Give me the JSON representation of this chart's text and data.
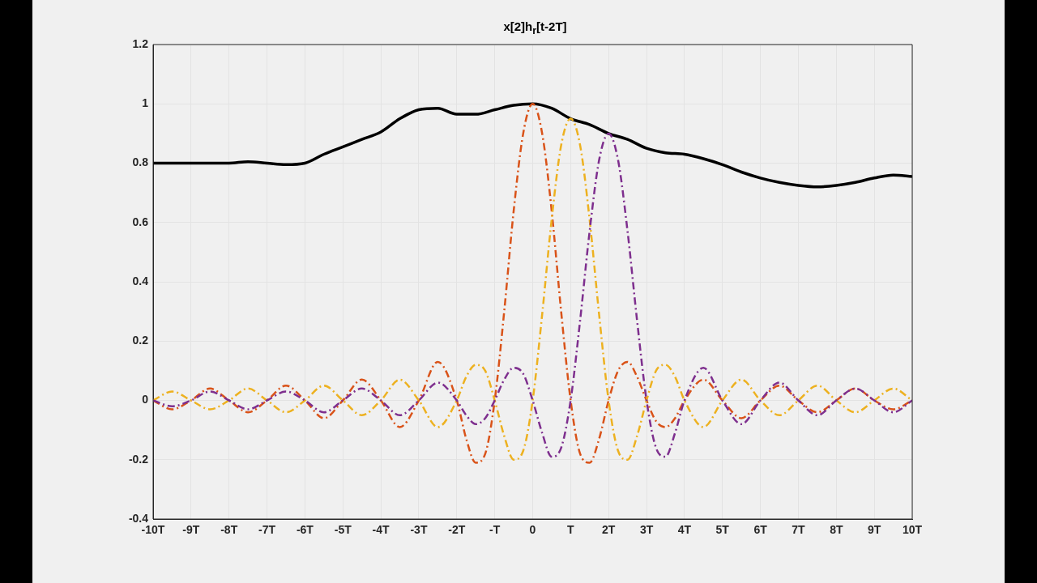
{
  "chart_data": {
    "type": "line",
    "title": "x[2]h$_{r}$[t-2T]",
    "x": [
      -10,
      -9.5,
      -9,
      -8.5,
      -8,
      -7.5,
      -7,
      -6.5,
      -6,
      -5.5,
      -5,
      -4.5,
      -4,
      -3.5,
      -3,
      -2.5,
      -2,
      -1.75,
      -1.5,
      -1.25,
      -1,
      -0.75,
      -0.5,
      -0.25,
      0,
      0.25,
      0.5,
      0.75,
      1,
      1.25,
      1.5,
      1.75,
      2,
      2.25,
      2.5,
      2.75,
      3,
      3.25,
      3.5,
      3.75,
      4,
      4.5,
      5,
      5.5,
      6,
      6.5,
      7,
      7.5,
      8,
      8.5,
      9,
      9.5,
      10
    ],
    "series": [
      {
        "color": "#000000",
        "line_style": "solid",
        "x": [
          -10,
          -9.5,
          -9,
          -8.5,
          -8,
          -7.5,
          -7,
          -6.5,
          -6,
          -5.5,
          -5,
          -4.5,
          -4,
          -3.5,
          -3,
          -2.5,
          -2,
          -1.5,
          -1,
          -0.5,
          0,
          0.5,
          1,
          1.5,
          2,
          2.5,
          3,
          3.5,
          4,
          4.5,
          5,
          5.5,
          6,
          6.5,
          7,
          7.5,
          8,
          8.5,
          9,
          9.5,
          10
        ],
        "values": [
          0.8,
          0.8,
          0.8,
          0.8,
          0.8,
          0.805,
          0.8,
          0.795,
          0.8,
          0.83,
          0.855,
          0.88,
          0.905,
          0.95,
          0.98,
          0.985,
          0.965,
          0.965,
          0.98,
          0.995,
          1.0,
          0.985,
          0.95,
          0.93,
          0.9,
          0.88,
          0.85,
          0.835,
          0.83,
          0.815,
          0.795,
          0.77,
          0.75,
          0.735,
          0.725,
          0.72,
          0.725,
          0.735,
          0.75,
          0.76,
          0.755
        ]
      },
      {
        "color": "#d95319",
        "line_style": "dashed",
        "values": [
          0,
          -0.03,
          0,
          0.04,
          0,
          -0.04,
          0,
          0.05,
          0,
          -0.06,
          0,
          0.07,
          0,
          -0.09,
          0,
          0.13,
          0,
          -0.13,
          -0.21,
          -0.18,
          0,
          0.3,
          0.64,
          0.9,
          1,
          0.9,
          0.64,
          0.3,
          0,
          -0.18,
          -0.21,
          -0.13,
          0,
          0.1,
          0.13,
          0.08,
          0,
          -0.07,
          -0.09,
          -0.06,
          0,
          0.07,
          0,
          -0.06,
          0,
          0.05,
          0,
          -0.04,
          0,
          0.04,
          0,
          -0.03,
          0
        ]
      },
      {
        "color": "#edb120",
        "line_style": "dashed",
        "values": [
          0,
          0.03,
          0,
          -0.03,
          0,
          0.04,
          0,
          -0.04,
          0,
          0.05,
          0,
          -0.05,
          0,
          0.07,
          0,
          -0.09,
          0,
          0.08,
          0.12,
          0.1,
          0,
          -0.12,
          -0.2,
          -0.17,
          0,
          0.29,
          0.61,
          0.86,
          0.95,
          0.86,
          0.61,
          0.29,
          0,
          -0.17,
          -0.2,
          -0.12,
          0,
          0.1,
          0.12,
          0.08,
          0,
          -0.09,
          0,
          0.07,
          0,
          -0.05,
          0,
          0.05,
          0,
          -0.04,
          0,
          0.04,
          0
        ]
      },
      {
        "color": "#7e2f8e",
        "line_style": "dashed",
        "values": [
          0,
          -0.02,
          0,
          0.03,
          0,
          -0.03,
          0,
          0.03,
          0,
          -0.04,
          0,
          0.04,
          0,
          -0.05,
          0,
          0.06,
          0,
          -0.05,
          -0.08,
          -0.06,
          0,
          0.07,
          0.11,
          0.09,
          0,
          -0.11,
          -0.19,
          -0.16,
          0,
          0.27,
          0.57,
          0.81,
          0.9,
          0.81,
          0.57,
          0.27,
          0,
          -0.16,
          -0.19,
          -0.11,
          0,
          0.11,
          0,
          -0.08,
          0,
          0.06,
          0,
          -0.05,
          0,
          0.04,
          0,
          -0.04,
          0
        ]
      }
    ],
    "xlim": [
      -10,
      10
    ],
    "xticks": [
      {
        "value": -10,
        "label": "-10T"
      },
      {
        "value": -9,
        "label": "-9T"
      },
      {
        "value": -8,
        "label": "-8T"
      },
      {
        "value": -7,
        "label": "-7T"
      },
      {
        "value": -6,
        "label": "-6T"
      },
      {
        "value": -5,
        "label": "-5T"
      },
      {
        "value": -4,
        "label": "-4T"
      },
      {
        "value": -3,
        "label": "-3T"
      },
      {
        "value": -2,
        "label": "-2T"
      },
      {
        "value": -1,
        "label": "-T"
      },
      {
        "value": 0,
        "label": "0"
      },
      {
        "value": 1,
        "label": "T"
      },
      {
        "value": 2,
        "label": "2T"
      },
      {
        "value": 3,
        "label": "3T"
      },
      {
        "value": 4,
        "label": "4T"
      },
      {
        "value": 5,
        "label": "5T"
      },
      {
        "value": 6,
        "label": "6T"
      },
      {
        "value": 7,
        "label": "7T"
      },
      {
        "value": 8,
        "label": "8T"
      },
      {
        "value": 9,
        "label": "9T"
      },
      {
        "value": 10,
        "label": "10T"
      }
    ],
    "ylim": [
      -0.4,
      1.2
    ],
    "yticks": [
      -0.4,
      -0.2,
      0,
      0.2,
      0.4,
      0.6,
      0.8,
      1,
      1.2
    ],
    "grid": true,
    "marker": "none"
  }
}
